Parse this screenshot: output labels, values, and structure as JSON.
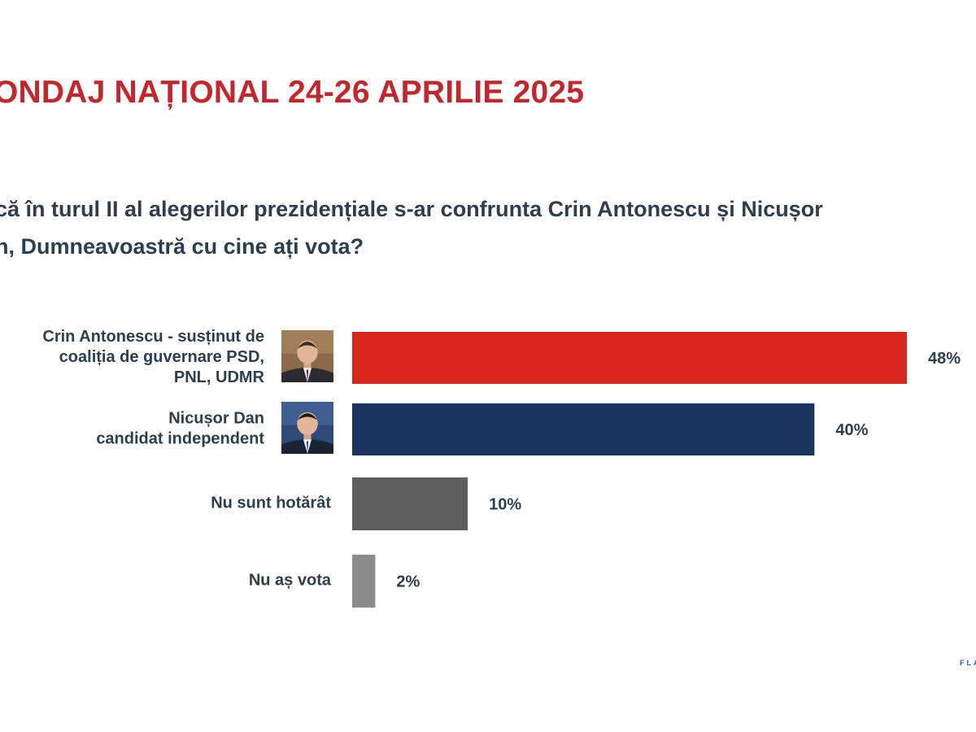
{
  "header": {
    "title": "ONDAJ NAȚIONAL 24-26 APRILIE 2025"
  },
  "question": {
    "lines": [
      "că în turul II al alegerilor prezidențiale s-ar confrunta Crin Antonescu și Nicușor",
      "n, Dumneavoastră cu cine ați vota?"
    ]
  },
  "colors": {
    "title": "#c0282d",
    "text": "#2c3e50",
    "bar_antonescu": "#d9261c",
    "bar_dan": "#1b365d",
    "bar_undecided": "#5e5e5e",
    "bar_novote": "#8c8c8c"
  },
  "chart_data": {
    "type": "bar",
    "orientation": "horizontal",
    "title": "",
    "xlabel": "",
    "ylabel": "",
    "xlim": [
      0,
      50
    ],
    "grid": false,
    "legend": "none",
    "categories": [
      {
        "label_lines": [
          "Crin Antonescu - susținut de",
          "coaliția de guvernare PSD,",
          "PNL, UDMR"
        ],
        "value": 48,
        "value_label": "48%",
        "color": "#d9261c",
        "portrait": "crin-antonescu-portrait"
      },
      {
        "label_lines": [
          "Nicușor Dan",
          "candidat independent"
        ],
        "value": 40,
        "value_label": "40%",
        "color": "#1b365d",
        "portrait": "nicusor-dan-portrait"
      },
      {
        "label_lines": [
          "Nu sunt hotărât"
        ],
        "value": 10,
        "value_label": "10%",
        "color": "#5e5e5e",
        "portrait": null
      },
      {
        "label_lines": [
          "Nu aș vota"
        ],
        "value": 2,
        "value_label": "2%",
        "color": "#8c8c8c",
        "portrait": null
      }
    ]
  },
  "footer": {
    "logo_fragment": "FLA"
  }
}
